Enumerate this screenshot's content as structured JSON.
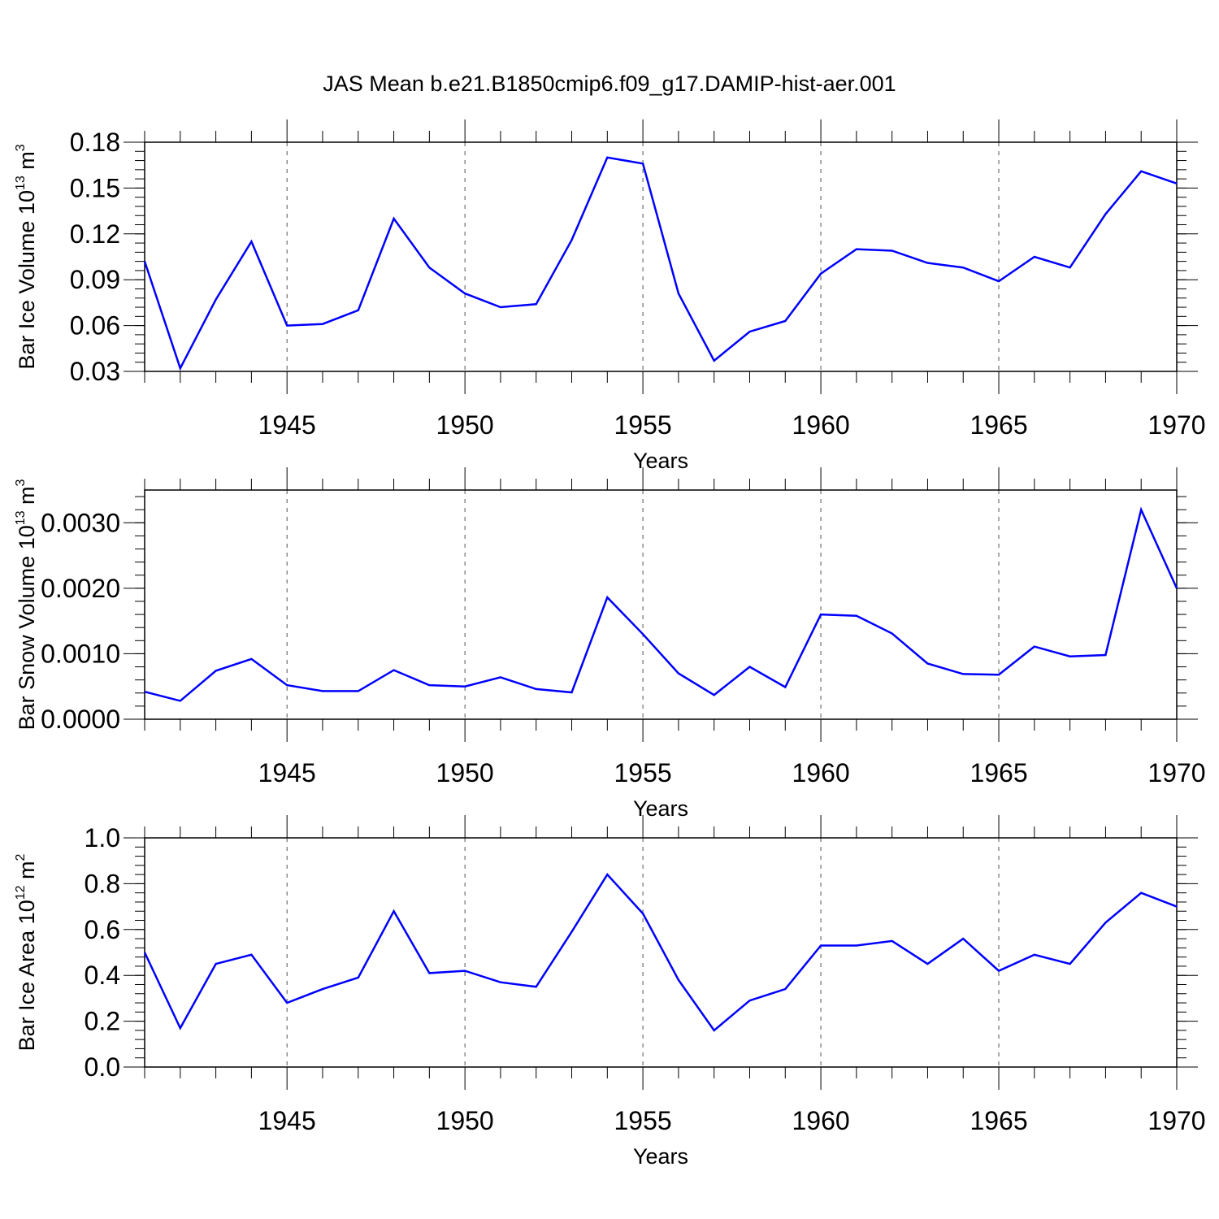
{
  "title": "JAS Mean b.e21.B1850cmip6.f09_g17.DAMIP-hist-aer.001",
  "colors": {
    "line": "#0000ff",
    "axis": "#000000",
    "grid": "#555555"
  },
  "chart_data": [
    {
      "type": "line",
      "name": "panel-ice-volume",
      "ylabel": {
        "main": "Bar Ice Volume 10",
        "sup1": "13",
        "mid": " m",
        "sup2": "3"
      },
      "xlabel": "Years",
      "xlim": [
        1941,
        1970
      ],
      "ylim": [
        0.03,
        0.18
      ],
      "yticks": [
        0.03,
        0.06,
        0.09,
        0.12,
        0.15,
        0.18
      ],
      "ytick_labels": [
        "0.03",
        "0.06",
        "0.09",
        "0.12",
        "0.15",
        "0.18"
      ],
      "yminor_step": 0.006,
      "xticks": [
        1945,
        1950,
        1955,
        1960,
        1965,
        1970
      ],
      "xtick_labels": [
        "1945",
        "1950",
        "1955",
        "1960",
        "1965",
        "1970"
      ],
      "x": [
        1941,
        1942,
        1943,
        1944,
        1945,
        1946,
        1947,
        1948,
        1949,
        1950,
        1951,
        1952,
        1953,
        1954,
        1955,
        1956,
        1957,
        1958,
        1959,
        1960,
        1961,
        1962,
        1963,
        1964,
        1965,
        1966,
        1967,
        1968,
        1969,
        1970
      ],
      "series": [
        {
          "name": "JAS Mean",
          "values": [
            0.102,
            0.032,
            0.077,
            0.115,
            0.06,
            0.061,
            0.07,
            0.13,
            0.098,
            0.081,
            0.072,
            0.074,
            0.116,
            0.17,
            0.166,
            0.081,
            0.037,
            0.056,
            0.063,
            0.094,
            0.11,
            0.109,
            0.101,
            0.098,
            0.089,
            0.105,
            0.098,
            0.133,
            0.161,
            0.153
          ]
        }
      ]
    },
    {
      "type": "line",
      "name": "panel-snow-volume",
      "ylabel": {
        "main": "Bar Snow Volume 10",
        "sup1": "13",
        "mid": " m",
        "sup2": "3"
      },
      "xlabel": "Years",
      "xlim": [
        1941,
        1970
      ],
      "ylim": [
        0.0,
        0.0035
      ],
      "yticks": [
        0.0,
        0.001,
        0.002,
        0.003
      ],
      "ytick_labels": [
        "0.0000",
        "0.0010",
        "0.0020",
        "0.0030"
      ],
      "yminor_step": 0.0002,
      "xticks": [
        1945,
        1950,
        1955,
        1960,
        1965,
        1970
      ],
      "xtick_labels": [
        "1945",
        "1950",
        "1955",
        "1960",
        "1965",
        "1970"
      ],
      "x": [
        1941,
        1942,
        1943,
        1944,
        1945,
        1946,
        1947,
        1948,
        1949,
        1950,
        1951,
        1952,
        1953,
        1954,
        1955,
        1956,
        1957,
        1958,
        1959,
        1960,
        1961,
        1962,
        1963,
        1964,
        1965,
        1966,
        1967,
        1968,
        1969,
        1970
      ],
      "series": [
        {
          "name": "JAS Mean",
          "values": [
            0.00042,
            0.00028,
            0.00074,
            0.00092,
            0.00052,
            0.00043,
            0.00043,
            0.00075,
            0.00052,
            0.0005,
            0.00064,
            0.00046,
            0.00041,
            0.00186,
            0.0013,
            0.0007,
            0.00037,
            0.0008,
            0.00049,
            0.0016,
            0.00158,
            0.00131,
            0.00085,
            0.00069,
            0.00068,
            0.00111,
            0.00096,
            0.00098,
            0.0032,
            0.002
          ]
        }
      ]
    },
    {
      "type": "line",
      "name": "panel-ice-area",
      "ylabel": {
        "main": "Bar Ice Area 10",
        "sup1": "12",
        "mid": " m",
        "sup2": "2"
      },
      "xlabel": "Years",
      "xlim": [
        1941,
        1970
      ],
      "ylim": [
        0.0,
        1.0
      ],
      "yticks": [
        0.0,
        0.2,
        0.4,
        0.6,
        0.8,
        1.0
      ],
      "ytick_labels": [
        "0.0",
        "0.2",
        "0.4",
        "0.6",
        "0.8",
        "1.0"
      ],
      "yminor_step": 0.04,
      "xticks": [
        1945,
        1950,
        1955,
        1960,
        1965,
        1970
      ],
      "xtick_labels": [
        "1945",
        "1950",
        "1955",
        "1960",
        "1965",
        "1970"
      ],
      "x": [
        1941,
        1942,
        1943,
        1944,
        1945,
        1946,
        1947,
        1948,
        1949,
        1950,
        1951,
        1952,
        1953,
        1954,
        1955,
        1956,
        1957,
        1958,
        1959,
        1960,
        1961,
        1962,
        1963,
        1964,
        1965,
        1966,
        1967,
        1968,
        1969,
        1970
      ],
      "series": [
        {
          "name": "JAS Mean",
          "values": [
            0.5,
            0.17,
            0.45,
            0.49,
            0.28,
            0.34,
            0.39,
            0.68,
            0.41,
            0.42,
            0.37,
            0.35,
            0.59,
            0.84,
            0.67,
            0.38,
            0.16,
            0.29,
            0.34,
            0.53,
            0.53,
            0.55,
            0.45,
            0.56,
            0.42,
            0.49,
            0.45,
            0.63,
            0.76,
            0.7
          ]
        }
      ]
    }
  ]
}
